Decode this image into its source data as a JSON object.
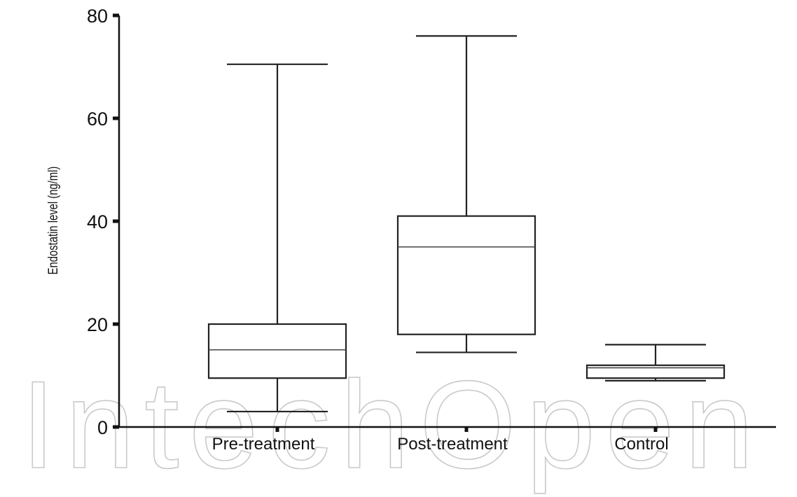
{
  "watermark": "IntechOpen",
  "colors": {
    "axis": "#111111",
    "box_stroke": "#222222",
    "median": "#444444",
    "watermark": "#c9c9c9"
  },
  "chart_data": {
    "type": "box",
    "title": "",
    "xlabel": "",
    "ylabel": "Endostatin level (ng/ml)",
    "ylim": [
      0,
      80
    ],
    "yticks": [
      0,
      20,
      40,
      60,
      80
    ],
    "ytick_labels": [
      "0",
      "20",
      "40",
      "60",
      "80"
    ],
    "grid": false,
    "categories": [
      "Pre-treatment",
      "Post-treatment",
      "Control"
    ],
    "boxes": [
      {
        "category": "Pre-treatment",
        "min": 3,
        "q1": 9.5,
        "median": 15,
        "q3": 20,
        "max": 70.5
      },
      {
        "category": "Post-treatment",
        "min": 14.5,
        "q1": 18,
        "median": 35,
        "q3": 41,
        "max": 76
      },
      {
        "category": "Control",
        "min": 9,
        "q1": 9.5,
        "median": 11.5,
        "q3": 12,
        "max": 16
      }
    ]
  }
}
